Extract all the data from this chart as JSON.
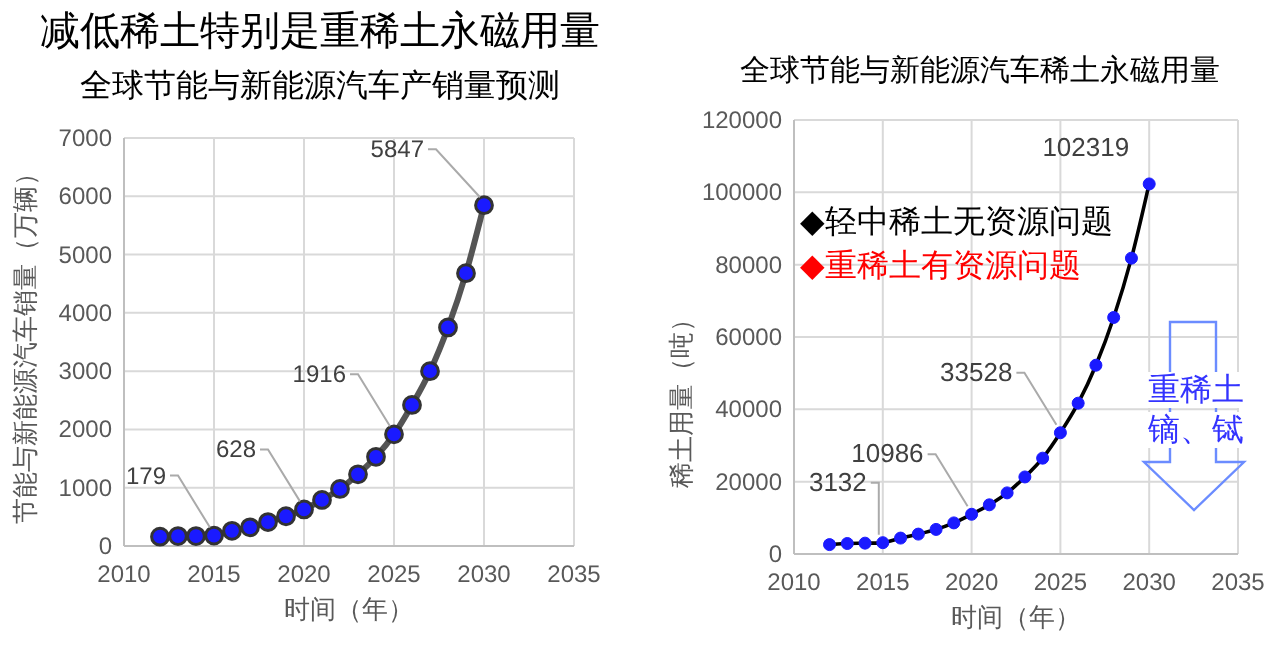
{
  "chart_data": [
    {
      "type": "line",
      "title": "减低稀土特别是重稀土永磁用量",
      "subtitle": "全球节能与新能源汽车产销量预测",
      "xlabel": "时间（年）",
      "ylabel": "节能与新能源汽车销量（万辆）",
      "x": [
        2012,
        2013,
        2014,
        2015,
        2016,
        2017,
        2018,
        2019,
        2020,
        2021,
        2022,
        2023,
        2024,
        2025,
        2026,
        2027,
        2028,
        2029,
        2030
      ],
      "series": [
        {
          "color": "#1a1aff",
          "values": [
            160,
            170,
            170,
            179,
            260,
            320,
            410,
            510,
            628,
            790,
            980,
            1230,
            1530,
            1916,
            2420,
            3000,
            3750,
            4680,
            5847
          ],
          "value_labels": [
            null,
            null,
            null,
            "179",
            null,
            null,
            null,
            null,
            "628",
            null,
            null,
            null,
            null,
            "1916",
            null,
            null,
            null,
            null,
            "5847"
          ]
        }
      ],
      "xlim": [
        2010,
        2035
      ],
      "xticks": [
        2010,
        2015,
        2020,
        2025,
        2030,
        2035
      ],
      "ylim": [
        0,
        7000
      ],
      "yticks": [
        0,
        1000,
        2000,
        3000,
        4000,
        5000,
        6000,
        7000
      ],
      "grid": true,
      "marker": "circle",
      "line_style": "solid"
    },
    {
      "type": "line",
      "title": "全球节能与新能源汽车稀土永磁用量",
      "xlabel": "时间（年）",
      "ylabel": "稀土用量（吨）",
      "x": [
        2012,
        2013,
        2014,
        2015,
        2016,
        2017,
        2018,
        2019,
        2020,
        2021,
        2022,
        2023,
        2024,
        2025,
        2026,
        2027,
        2028,
        2029,
        2030
      ],
      "series": [
        {
          "color": "#1a1aff",
          "values": [
            2600,
            2900,
            3000,
            3132,
            4400,
            5500,
            6800,
            8600,
            10986,
            13600,
            16900,
            21300,
            26500,
            33528,
            41700,
            52200,
            65400,
            81800,
            102319
          ],
          "value_labels": [
            null,
            null,
            null,
            "3132",
            null,
            null,
            null,
            null,
            "10986",
            null,
            null,
            null,
            null,
            "33528",
            null,
            null,
            null,
            null,
            "102319"
          ]
        }
      ],
      "xlim": [
        2010,
        2035
      ],
      "xticks": [
        2010,
        2015,
        2020,
        2025,
        2030,
        2035
      ],
      "ylim": [
        0,
        120000
      ],
      "yticks": [
        0,
        20000,
        40000,
        60000,
        80000,
        100000,
        120000
      ],
      "grid": true,
      "marker": "circle",
      "line_style": "solid",
      "annotations": [
        "◆轻中稀土无资源问题",
        "◆重稀土有资源问题",
        "重稀土",
        "镝、铽"
      ]
    }
  ]
}
